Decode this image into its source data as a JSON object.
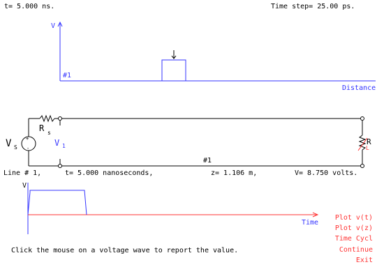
{
  "header": {
    "time_readout": "t= 5.000 ns.",
    "time_step": "Time step= 25.00 ps."
  },
  "top_plot": {
    "y_label": "V",
    "line_id": "#1",
    "x_label": "Distance"
  },
  "circuit": {
    "source_label": "V",
    "source_subscript": "S",
    "series_r_label": "R",
    "series_r_subscript": "s",
    "line_voltage_label": "V",
    "line_voltage_subscript": "1",
    "load_label": "R",
    "load_subscript": "L",
    "line_id": "#1"
  },
  "status": {
    "line": "Line # 1,",
    "time": "t= 5.000 nanoseconds,",
    "position": "z= 1.106 m,",
    "voltage": "V= 8.750 volts."
  },
  "bottom_plot": {
    "y_label": "V",
    "x_label": "Time"
  },
  "instruction": "Click the mouse on a voltage wave to report the value.",
  "menu": {
    "plot_vt": "Plot v(t)",
    "plot_vz": "Plot v(z)",
    "time_cycle": "Time Cycl",
    "continue": "Continue",
    "exit": "Exit"
  },
  "colors": {
    "wave": "#3333ff",
    "axis_time": "#ff3333",
    "menu": "#ff3333",
    "text": "#000000"
  }
}
